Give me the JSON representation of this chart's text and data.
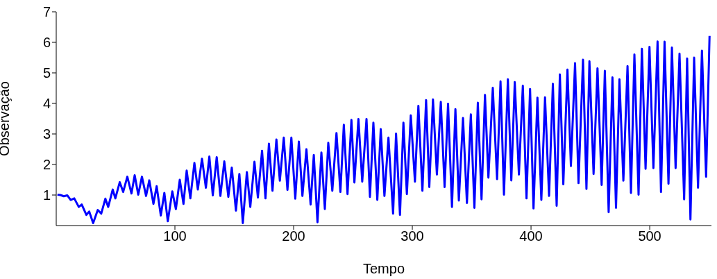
{
  "chart_data": {
    "type": "line",
    "xlabel": "Tempo",
    "ylabel": "Observação",
    "color": "#0000ff",
    "xlim": [
      0,
      552
    ],
    "xticks": [
      100,
      200,
      300,
      400,
      500
    ],
    "ylim": [
      0,
      7
    ],
    "yticks": [
      1,
      2,
      3,
      4,
      5,
      6,
      7
    ],
    "x": [
      1,
      3.5,
      6.4,
      9.3,
      12.2,
      15.2,
      19.0,
      21.5,
      25.4,
      27.8,
      31.1,
      35.0,
      37.9,
      41.4,
      43.8,
      47.6,
      49.8,
      53.5,
      56.4,
      59.9,
      63.4,
      66.1,
      69.1,
      72.2,
      75.7,
      78.4,
      81.9,
      84.6,
      88.1,
      91.1,
      94.0,
      97.8,
      100.8,
      104.1,
      107.2,
      109.9,
      113.0,
      116.4,
      119.3,
      122.8,
      126.1,
      129.0,
      131.9,
      135.2,
      138.3,
      141.6,
      145.0,
      147.9,
      151.4,
      154.3,
      157.2,
      160.6,
      163.5,
      167.0,
      169.9,
      173.4,
      176.3,
      179.2,
      182.2,
      185.5,
      188.4,
      191.7,
      194.8,
      198.1,
      201.4,
      204.4,
      207.4,
      210.8,
      214.3,
      217.0,
      220.1,
      223.4,
      226.3,
      229.2,
      232.6,
      236.1,
      239.4,
      242.3,
      245.4,
      248.7,
      251.2,
      254.6,
      257.8,
      261.4,
      264.3,
      267.2,
      270.5,
      273.4,
      276.5,
      279.9,
      283.8,
      286.3,
      289.6,
      292.5,
      295.4,
      298.7,
      302.2,
      305.1,
      308.5,
      311.6,
      314.3,
      317.4,
      320.7,
      324.0,
      327.2,
      330.1,
      333.4,
      336.3,
      339.2,
      342.7,
      346.0,
      349.3,
      352.3,
      355.2,
      358.3,
      361.2,
      364.1,
      367.8,
      371.4,
      374.3,
      377.2,
      380.5,
      383.4,
      386.3,
      389.8,
      393.1,
      396.2,
      399.2,
      402.1,
      405.4,
      408.7,
      411.8,
      415.2,
      418.4,
      421.6,
      424.3,
      427.2,
      430.7,
      433.6,
      437.1,
      440.0,
      443.8,
      446.7,
      449.2,
      452.7,
      456.0,
      459.5,
      462.2,
      465.4,
      468.6,
      471.6,
      474.5,
      477.8,
      481.3,
      484.2,
      487.1,
      490.6,
      493.4,
      496.5,
      499.8,
      503.1,
      506.6,
      509.5,
      512.5,
      515.8,
      518.7,
      521.8,
      525.1,
      529.0,
      531.5,
      534.3,
      537.4,
      540.7,
      544.0,
      547.5,
      550.4
    ],
    "values": [
      1.01,
      1.0,
      0.96,
      0.99,
      0.84,
      0.89,
      0.61,
      0.69,
      0.35,
      0.46,
      0.08,
      0.51,
      0.39,
      0.88,
      0.61,
      1.18,
      0.89,
      1.42,
      1.1,
      1.6,
      1.05,
      1.65,
      1.01,
      1.6,
      0.97,
      1.48,
      0.71,
      1.29,
      0.33,
      1.07,
      0.14,
      1.12,
      0.54,
      1.5,
      0.71,
      1.8,
      0.89,
      2.05,
      1.18,
      2.19,
      1.24,
      2.26,
      0.99,
      2.24,
      0.97,
      2.1,
      0.94,
      1.9,
      0.49,
      1.69,
      0.08,
      1.75,
      0.61,
      2.09,
      0.92,
      2.45,
      0.89,
      2.68,
      1.14,
      2.82,
      1.47,
      2.88,
      1.17,
      2.88,
      0.88,
      2.75,
      0.97,
      2.5,
      0.69,
      2.31,
      0.11,
      2.39,
      0.54,
      2.71,
      1.14,
      3.03,
      1.1,
      3.3,
      1.03,
      3.46,
      1.41,
      3.49,
      1.44,
      3.49,
      0.94,
      3.37,
      0.84,
      3.16,
      0.97,
      2.88,
      0.39,
      3.01,
      0.35,
      3.37,
      1.03,
      3.61,
      1.44,
      3.92,
      1.14,
      4.11,
      1.26,
      4.13,
      1.67,
      4.05,
      1.26,
      3.99,
      0.61,
      3.81,
      0.82,
      3.52,
      0.74,
      3.64,
      0.58,
      4.02,
      0.86,
      4.28,
      1.57,
      4.51,
      1.52,
      4.72,
      1.01,
      4.79,
      1.48,
      4.7,
      1.67,
      4.58,
      0.89,
      4.47,
      0.56,
      4.19,
      0.84,
      4.2,
      0.97,
      4.64,
      0.65,
      4.95,
      1.35,
      5.11,
      1.95,
      5.32,
      1.39,
      5.43,
      1.2,
      5.38,
      1.69,
      5.15,
      1.33,
      5.07,
      0.44,
      4.85,
      0.58,
      4.79,
      1.47,
      5.22,
      1.07,
      5.6,
      1.01,
      5.79,
      1.86,
      5.85,
      1.88,
      6.03,
      1.1,
      6.02,
      1.37,
      5.83,
      1.88,
      5.63,
      0.86,
      5.47,
      0.2,
      5.5,
      1.24,
      5.73,
      1.6,
      6.21
    ]
  }
}
